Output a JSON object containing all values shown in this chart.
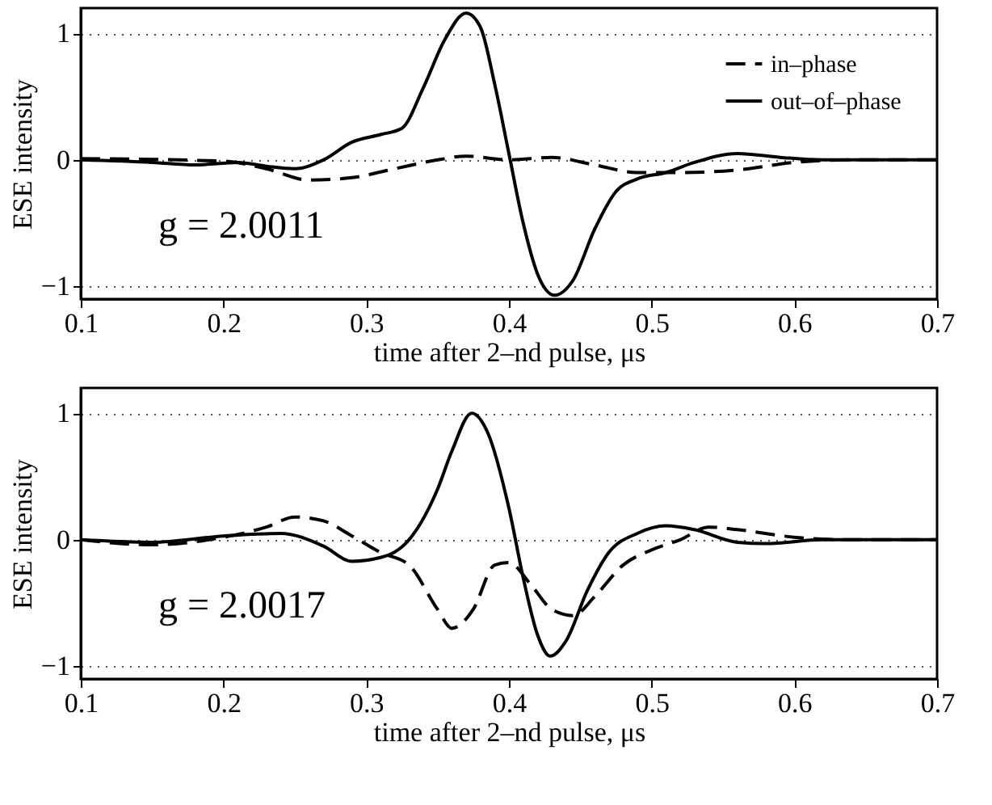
{
  "chart_data": [
    {
      "type": "line",
      "xlabel": "time after 2–nd pulse, μs",
      "ylabel": "ESE intensity",
      "annotations": [
        "g = 2.0011"
      ],
      "xlim": [
        0.1,
        0.7
      ],
      "xticks": [
        0.1,
        0.2,
        0.3,
        0.4,
        0.5,
        0.6,
        0.7
      ],
      "ylim": [
        -1.1,
        1.2
      ],
      "yticks": [
        -1,
        0,
        1
      ],
      "grid": "y",
      "legend": "top right",
      "series": [
        {
          "name": "in–phase",
          "color": "#000000",
          "line_style": "dashed",
          "x": [
            0.1,
            0.2,
            0.23,
            0.26,
            0.29,
            0.32,
            0.35,
            0.37,
            0.4,
            0.43,
            0.46,
            0.49,
            0.52,
            0.56,
            0.6,
            0.64,
            0.7
          ],
          "values": [
            0.01,
            -0.01,
            -0.07,
            -0.16,
            -0.14,
            -0.07,
            0.0,
            0.03,
            0.0,
            0.02,
            -0.04,
            -0.1,
            -0.1,
            -0.08,
            -0.02,
            0.0,
            0.0
          ]
        },
        {
          "name": "out–of–phase",
          "color": "#000000",
          "line_style": "solid",
          "x": [
            0.1,
            0.15,
            0.18,
            0.21,
            0.23,
            0.25,
            0.27,
            0.29,
            0.31,
            0.325,
            0.34,
            0.355,
            0.37,
            0.38,
            0.39,
            0.4,
            0.41,
            0.42,
            0.432,
            0.445,
            0.46,
            0.475,
            0.49,
            0.51,
            0.53,
            0.56,
            0.59,
            0.62,
            0.7
          ],
          "values": [
            0.0,
            -0.02,
            -0.04,
            -0.02,
            -0.05,
            -0.07,
            0.0,
            0.14,
            0.2,
            0.25,
            0.57,
            0.95,
            1.16,
            1.05,
            0.6,
            0.05,
            -0.5,
            -0.9,
            -1.07,
            -0.95,
            -0.55,
            -0.25,
            -0.15,
            -0.1,
            -0.02,
            0.05,
            0.02,
            0.0,
            0.0
          ]
        }
      ]
    },
    {
      "type": "line",
      "xlabel": "time after 2–nd pulse, μs",
      "ylabel": "ESE intensity",
      "annotations": [
        "g = 2.0017"
      ],
      "xlim": [
        0.1,
        0.7
      ],
      "xticks": [
        0.1,
        0.2,
        0.3,
        0.4,
        0.5,
        0.6,
        0.7
      ],
      "ylim": [
        -1.1,
        1.2
      ],
      "yticks": [
        -1,
        0,
        1
      ],
      "grid": "y",
      "legend": "top right",
      "series": [
        {
          "name": "in–phase",
          "color": "#000000",
          "line_style": "dashed",
          "x": [
            0.1,
            0.15,
            0.2,
            0.23,
            0.25,
            0.27,
            0.29,
            0.31,
            0.33,
            0.35,
            0.36,
            0.375,
            0.39,
            0.4,
            0.415,
            0.43,
            0.445,
            0.46,
            0.48,
            0.5,
            0.52,
            0.54,
            0.56,
            0.6,
            0.64,
            0.7
          ],
          "values": [
            0.0,
            -0.04,
            0.02,
            0.1,
            0.18,
            0.15,
            0.03,
            -0.1,
            -0.2,
            -0.55,
            -0.7,
            -0.55,
            -0.2,
            -0.18,
            -0.35,
            -0.55,
            -0.6,
            -0.45,
            -0.2,
            -0.08,
            0.0,
            0.1,
            0.08,
            0.02,
            0.0,
            0.0
          ]
        },
        {
          "name": "out–of–phase",
          "color": "#000000",
          "line_style": "solid",
          "x": [
            0.1,
            0.15,
            0.2,
            0.24,
            0.27,
            0.29,
            0.31,
            0.33,
            0.35,
            0.36,
            0.374,
            0.385,
            0.4,
            0.41,
            0.42,
            0.429,
            0.44,
            0.455,
            0.47,
            0.49,
            0.51,
            0.53,
            0.56,
            0.58,
            0.62,
            0.7
          ],
          "values": [
            0.0,
            -0.02,
            0.03,
            0.05,
            -0.05,
            -0.17,
            -0.14,
            0.0,
            0.4,
            0.7,
            1.0,
            0.85,
            0.25,
            -0.3,
            -0.75,
            -0.92,
            -0.8,
            -0.4,
            -0.1,
            0.05,
            0.11,
            0.08,
            -0.02,
            -0.03,
            0.0,
            0.0
          ]
        }
      ]
    }
  ]
}
